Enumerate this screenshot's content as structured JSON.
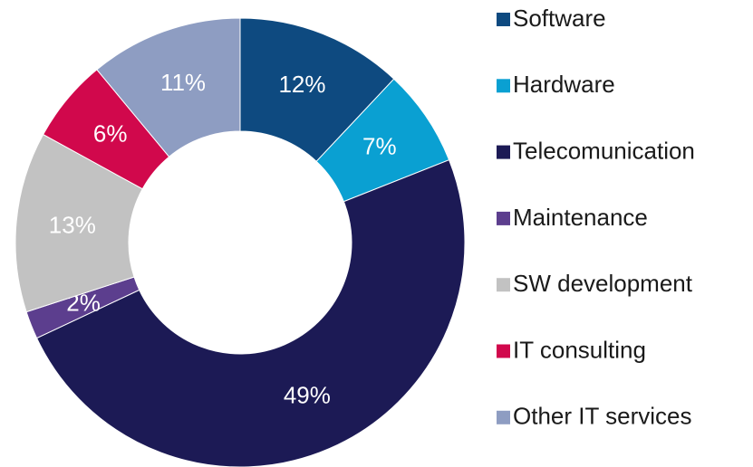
{
  "chart_data": {
    "type": "donut",
    "categories": [
      "Software",
      "Hardware",
      "Telecomunication",
      "Maintenance",
      "SW development",
      "IT consulting",
      "Other IT services"
    ],
    "values": [
      12,
      7,
      49,
      2,
      13,
      6,
      11
    ],
    "value_labels": [
      "12%",
      "7%",
      "49%",
      "2%",
      "13%",
      "6%",
      "11%"
    ],
    "colors": [
      "#0e4a80",
      "#0aa0d2",
      "#1c1a55",
      "#5c3e8e",
      "#c2c2c2",
      "#d1084c",
      "#8e9dc2"
    ],
    "legend": "right"
  }
}
